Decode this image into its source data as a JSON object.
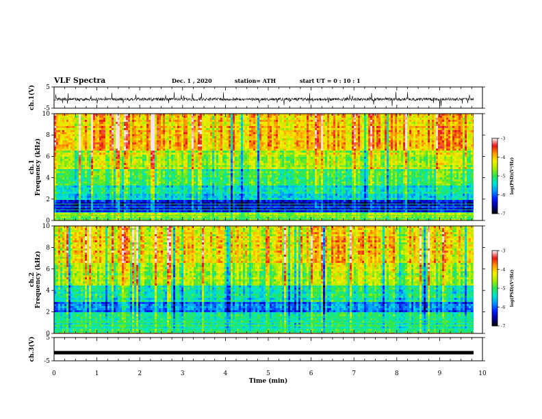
{
  "header": {
    "title": "VLF Spectra",
    "date": "Dec. 1 , 2020",
    "station": "station= ATH",
    "start": "start  UT =  0 : 10 : 1"
  },
  "chart_data": [
    {
      "type": "line",
      "panel": "ch1-waveform",
      "ylabel": "ch.1(V)",
      "ylim": [
        -5,
        5
      ],
      "yticks": [
        "5",
        "-5"
      ],
      "xlim": [
        0,
        10
      ],
      "description_values": {
        "baseline": -0.8,
        "min": -4.5,
        "max": 3.5
      },
      "series": [
        {
          "values": []
        }
      ]
    },
    {
      "type": "heatmap",
      "panel": "ch1-spectrogram",
      "ylabel": "ch.1 Frequency (kHz)",
      "ylim": [
        0,
        10
      ],
      "yticks": [
        "0",
        "2",
        "4",
        "6",
        "8",
        "10"
      ],
      "xlim": [
        0,
        9.8
      ],
      "colorbar": {
        "label": "log(PSD)(V²/Hz)",
        "range": [
          -7,
          -3
        ],
        "ticks": [
          "-3",
          "-4",
          "-5",
          "-6",
          "-7"
        ]
      },
      "bands_khz": [
        {
          "from": 0,
          "to": 0.8,
          "level": -4.6
        },
        {
          "from": 0.8,
          "to": 2.0,
          "level": -6.3
        },
        {
          "from": 2.0,
          "to": 3.3,
          "level": -5.4
        },
        {
          "from": 3.3,
          "to": 4.8,
          "level": -5.0
        },
        {
          "from": 4.8,
          "to": 6.5,
          "level": -4.5
        },
        {
          "from": 6.5,
          "to": 10,
          "level": -4.0
        }
      ]
    },
    {
      "type": "heatmap",
      "panel": "ch2-spectrogram",
      "ylabel": "ch.2 Frequency (kHz)",
      "ylim": [
        0,
        10
      ],
      "yticks": [
        "0",
        "2",
        "4",
        "6",
        "8",
        "10"
      ],
      "xlim": [
        0,
        9.8
      ],
      "colorbar": {
        "label": "log(PSD)(V²/Hz)",
        "range": [
          -7,
          -3
        ],
        "ticks": [
          "-3",
          "-4",
          "-5",
          "-6",
          "-7"
        ]
      },
      "bands_khz": [
        {
          "from": 0,
          "to": 2.0,
          "level": -5.2
        },
        {
          "from": 2.0,
          "to": 3.0,
          "level": -5.9
        },
        {
          "from": 3.0,
          "to": 4.5,
          "level": -5.3
        },
        {
          "from": 4.5,
          "to": 6.5,
          "level": -4.6
        },
        {
          "from": 6.5,
          "to": 10,
          "level": -4.2
        }
      ]
    },
    {
      "type": "line",
      "panel": "ch3-waveform",
      "ylabel": "ch.3(V)",
      "ylim": [
        -5,
        5
      ],
      "yticks": [
        "5",
        "-5"
      ],
      "xlim": [
        0,
        10
      ],
      "xlabel": "Time  (min)",
      "xticks": [
        "0",
        "1",
        "2",
        "3",
        "4",
        "5",
        "6",
        "7",
        "8",
        "9",
        "10"
      ],
      "series": [
        {
          "values": [
            -1.5,
            -1.5
          ]
        }
      ]
    }
  ]
}
